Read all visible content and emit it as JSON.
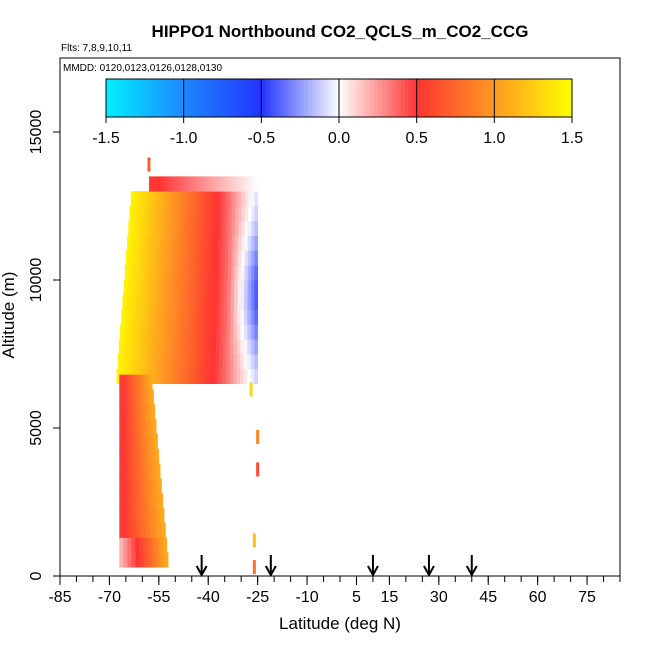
{
  "chart_data": {
    "type": "heatmap",
    "title": "HIPPO1 Northbound CO2_QCLS_m_CO2_CCG",
    "flights_label": "Flts: 7,8,9,10,11",
    "mmdd_label": "MMDD: 0120,0123,0126,0128,0130",
    "xlabel": "Latitude (deg N)",
    "ylabel": "Altitude (m)",
    "xlim": [
      -85,
      85
    ],
    "ylim": [
      0,
      17500
    ],
    "x_ticks": [
      -85,
      -70,
      -55,
      -40,
      -25,
      -10,
      5,
      15,
      30,
      45,
      60,
      75
    ],
    "x_minor_step": 5,
    "y_ticks": [
      0,
      5000,
      10000,
      15000
    ],
    "colorbar": {
      "range": [
        -1.5,
        1.5
      ],
      "ticks": [
        -1.5,
        -1.0,
        -0.5,
        0.0,
        0.5,
        1.0,
        1.5
      ],
      "tick_labels": [
        "-1.5",
        "-1.0",
        "-0.5",
        "0.0",
        "0.5",
        "1.0",
        "1.5"
      ],
      "stops": [
        {
          "v": -1.5,
          "color": "#00f0ff"
        },
        {
          "v": -1.0,
          "color": "#1e88ff"
        },
        {
          "v": -0.5,
          "color": "#2233ff"
        },
        {
          "v": 0.0,
          "color": "#ffffff"
        },
        {
          "v": 0.5,
          "color": "#ff3333"
        },
        {
          "v": 1.0,
          "color": "#ff9922"
        },
        {
          "v": 1.5,
          "color": "#ffff00"
        }
      ]
    },
    "flight_arrows_lat": [
      -42,
      -21,
      10,
      27,
      40
    ],
    "curtain": {
      "lat_min": -68,
      "lat_max": -25,
      "alt_min": 6500,
      "alt_max": 13500,
      "alt_step": 500,
      "anomaly_west": 1.45,
      "anomaly_mid": 0.45,
      "anomaly_east": -0.05,
      "anomaly_core_min": -0.45,
      "core_alt": 9500
    },
    "lower_column": {
      "alt_min": 300,
      "alt_max": 6500,
      "alt_step": 500,
      "west_edge_lat": -67,
      "east_edge_lat_bottom": -52,
      "east_edge_lat_top": -57,
      "anomaly_west": 0.45,
      "anomaly_east": 1.1
    },
    "isolated_points": [
      {
        "lat": -58,
        "alt": 13900,
        "v": 0.7
      },
      {
        "lat": -27,
        "alt": 6300,
        "v": 1.3
      },
      {
        "lat": -25,
        "alt": 4700,
        "v": 0.9
      },
      {
        "lat": -25,
        "alt": 3600,
        "v": 0.6
      },
      {
        "lat": -26,
        "alt": 1200,
        "v": 1.2
      },
      {
        "lat": -26,
        "alt": 300,
        "v": 0.8
      }
    ]
  }
}
